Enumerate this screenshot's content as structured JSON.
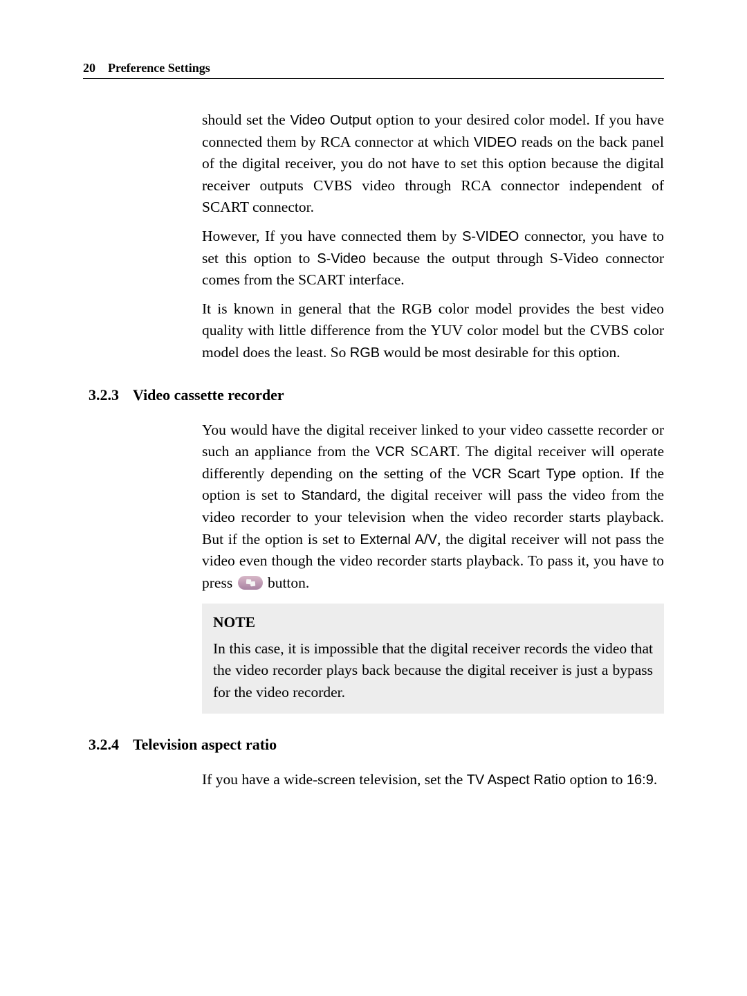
{
  "header": {
    "page_number": "20",
    "title": "Preference Settings"
  },
  "paragraphs": {
    "p1_part1": "should set the ",
    "p1_term1": "Video Output",
    "p1_part2": " option to your desired color model. If you have connected them by RCA connector at which ",
    "p1_term2": "VIDEO",
    "p1_part3": " reads on the back panel of the digital receiver, you do not have to set this option because the digital receiver outputs CVBS video through RCA connector independent of SCART connector.",
    "p2_part1": "However, If you have connected them by ",
    "p2_term1": "S-VIDEO",
    "p2_part2": " connector, you have to set this option to ",
    "p2_term2": "S-Video",
    "p2_part3": " because the output through S-Video connector comes from the SCART interface.",
    "p3_part1": "It is known in general that the RGB color model provides the best video quality with little difference from the YUV color model but the CVBS color model does the least. So ",
    "p3_term1": "RGB",
    "p3_part2": " would be most desirable for this option.",
    "p4_part1": "You would have the digital receiver linked to your video cassette recorder or such an appliance from the ",
    "p4_term1": "VCR",
    "p4_part2": " SCART. The digital receiver will operate differently depending on the setting of the ",
    "p4_term2": "VCR Scart Type",
    "p4_part3": " option. If the option is set to ",
    "p4_term3": "Standard",
    "p4_part4": ", the digital receiver will pass the video from the video recorder to your television when the video recorder starts playback. But if the option is set to ",
    "p4_term4": "External A/V",
    "p4_part5": ", the digital receiver will not pass the video even though the video recorder starts playback. To pass it, you have to press ",
    "p4_part6": " button.",
    "p5_part1": "If you have a wide-screen television, set the ",
    "p5_term1": "TV Aspect Ratio",
    "p5_part2": " option to ",
    "p5_term2": "16:9",
    "p5_part3": "."
  },
  "sections": {
    "s1_number": "3.2.3",
    "s1_title": "Video cassette recorder",
    "s2_number": "3.2.4",
    "s2_title": "Television aspect ratio"
  },
  "note": {
    "label": "NOTE",
    "text": "In this case, it is impossible that the digital receiver records the video that the video recorder plays back because the digital receiver is just a bypass for the video recorder."
  }
}
